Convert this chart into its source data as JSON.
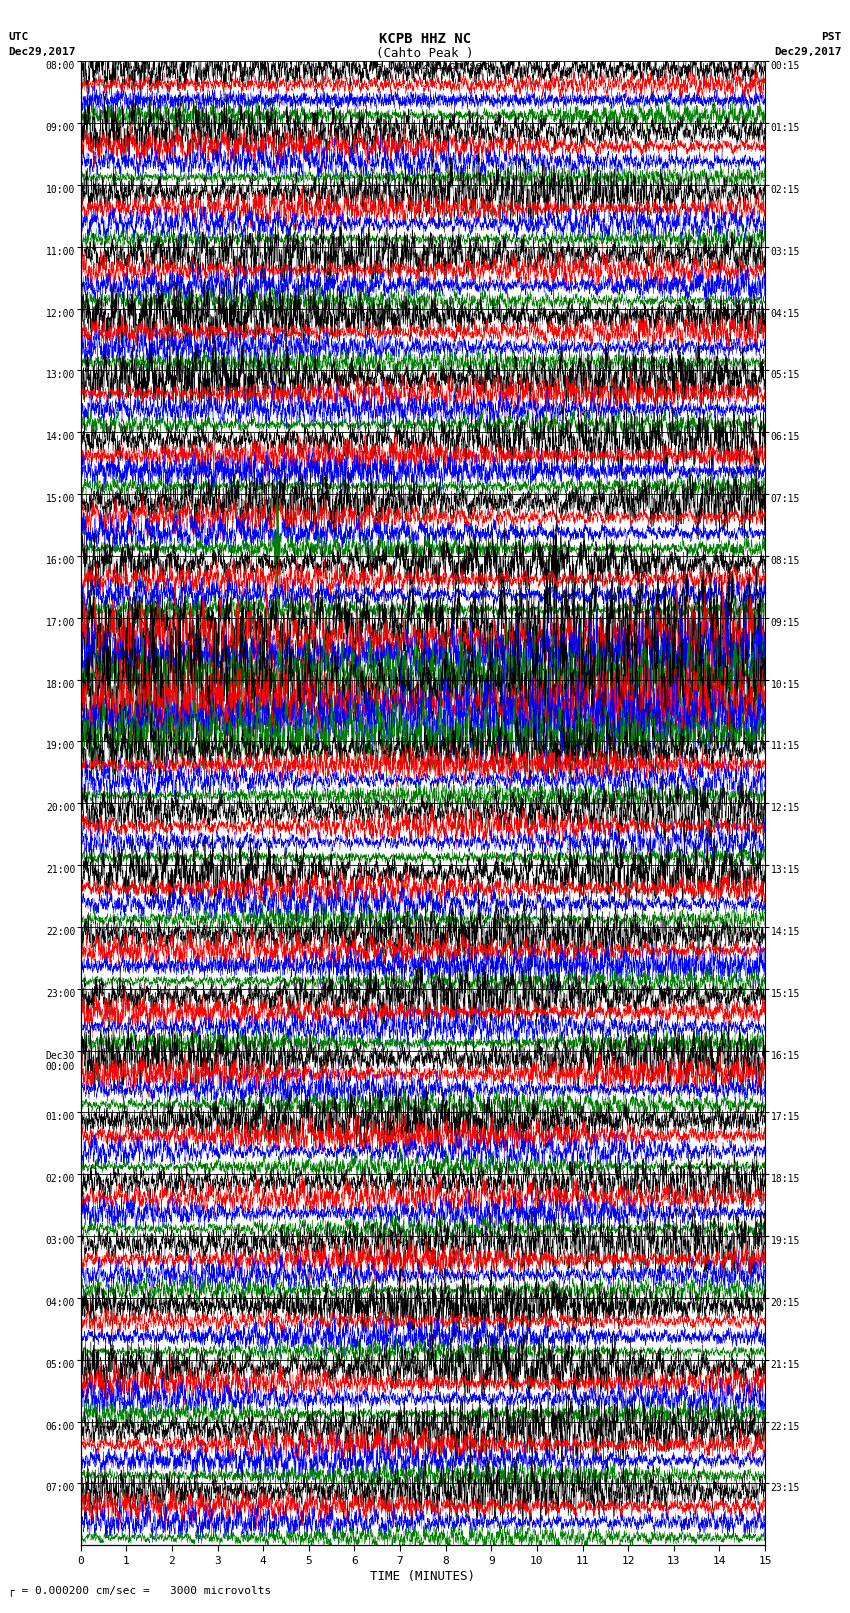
{
  "title_line1": "KCPB HHZ NC",
  "title_line2": "(Cahto Peak )",
  "title_line3": "I = 0.000200 cm/sec",
  "top_left_line1": "UTC",
  "top_left_line2": "Dec29,2017",
  "top_right_line1": "PST",
  "top_right_line2": "Dec29,2017",
  "xlabel": "TIME (MINUTES)",
  "bottom_note": "= 0.000200 cm/sec =   3000 microvolts",
  "utc_labels": [
    "08:00",
    "09:00",
    "10:00",
    "11:00",
    "12:00",
    "13:00",
    "14:00",
    "15:00",
    "16:00",
    "17:00",
    "18:00",
    "19:00",
    "20:00",
    "21:00",
    "22:00",
    "23:00",
    "Dec30\n00:00",
    "01:00",
    "02:00",
    "03:00",
    "04:00",
    "05:00",
    "06:00",
    "07:00"
  ],
  "pst_labels": [
    "00:15",
    "01:15",
    "02:15",
    "03:15",
    "04:15",
    "05:15",
    "06:15",
    "07:15",
    "08:15",
    "09:15",
    "10:15",
    "11:15",
    "12:15",
    "13:15",
    "14:15",
    "15:15",
    "16:15",
    "17:15",
    "18:15",
    "19:15",
    "20:15",
    "21:15",
    "22:15",
    "23:15"
  ],
  "n_rows": 24,
  "n_traces_per_row": 4,
  "trace_colors": [
    "black",
    "red",
    "blue",
    "green"
  ],
  "trace_amplitudes": [
    1.8,
    1.0,
    1.0,
    0.7
  ],
  "time_minutes": 15,
  "x_ticks": [
    0,
    1,
    2,
    3,
    4,
    5,
    6,
    7,
    8,
    9,
    10,
    11,
    12,
    13,
    14,
    15
  ],
  "background_color": "white",
  "spike_row_green": 7,
  "spike_row_black": 8,
  "spike_positions_green": [
    4.3
  ],
  "spike_positions_black": [
    10.4
  ],
  "high_energy_rows": [
    9,
    10
  ],
  "fig_width": 8.5,
  "fig_height": 16.13
}
